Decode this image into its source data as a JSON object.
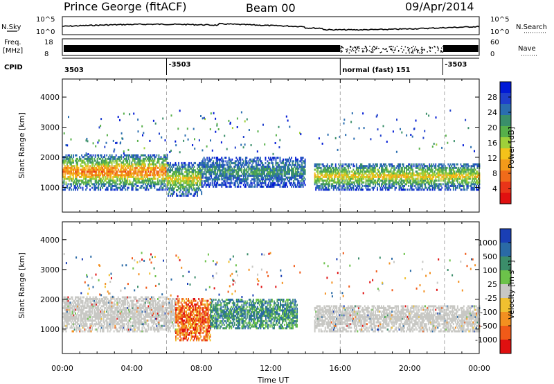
{
  "header": {
    "station": "Prince George (fitACF)",
    "beam": "Beam 00",
    "date": "09/Apr/2014"
  },
  "strips": {
    "nsky_label": "N.Sky",
    "nsearch_label": "N.Search",
    "freq_label_line1": "Freq.",
    "freq_label_line2": "[MHz]",
    "nave_label": "Nave",
    "cpid_label": "CPID",
    "noise_ticks": [
      "10^5",
      "10^0"
    ],
    "freq_ticks": [
      "18",
      "8"
    ],
    "nave_ticks": [
      "60",
      "0"
    ],
    "cpid_entries": [
      {
        "time": 0.0,
        "text": "3503"
      },
      {
        "time": 6.0,
        "text": "-3503"
      },
      {
        "time": 16.0,
        "text": "normal (fast) 151"
      },
      {
        "time": 21.9,
        "text": "-3503"
      }
    ]
  },
  "panels": {
    "power": {
      "ylabel": "Slant Range [km]",
      "colorbar_label": "Power [dB]",
      "colorbar_ticks": [
        "28",
        "24",
        "20",
        "16",
        "12",
        "8",
        "4"
      ],
      "colors": [
        "#0019d6",
        "#1f3fcc",
        "#2a6db0",
        "#3a8f6a",
        "#57b04a",
        "#9fd03a",
        "#f3c21a",
        "#f39a1a",
        "#f06b1a",
        "#e93518",
        "#e01010"
      ]
    },
    "velocity": {
      "ylabel": "Slant Range [km]",
      "colorbar_label": "Velocity [m s⁻¹]",
      "colorbar_ticks": [
        "1000",
        "500",
        "100",
        "25",
        "-25",
        "-100",
        "-500",
        "-1000"
      ],
      "colors": [
        "#1a3fb5",
        "#2a6aa6",
        "#3b8d6a",
        "#6cc24a",
        "#c8c8c4",
        "#f0c030",
        "#f39020",
        "#f05a18",
        "#e01010"
      ]
    }
  },
  "xaxis": {
    "label": "Time UT",
    "ticks": [
      "00:00",
      "04:00",
      "08:00",
      "12:00",
      "16:00",
      "20:00",
      "00:00"
    ]
  },
  "yaxis": {
    "ticks": [
      "1000",
      "2000",
      "3000",
      "4000"
    ]
  },
  "chart_data": {
    "type": "heatmap",
    "x_range_hours": [
      0,
      24
    ],
    "y_range_km": [
      180,
      4600
    ],
    "dashed_times": [
      6,
      16,
      22
    ],
    "power_echo_bands": [
      {
        "t0": 0.0,
        "t1": 6.0,
        "r_lo": 900,
        "r_hi": 2100,
        "level": "high"
      },
      {
        "t0": 6.0,
        "t1": 8.0,
        "r_lo": 700,
        "r_hi": 1800,
        "level": "mid"
      },
      {
        "t0": 8.0,
        "t1": 14.0,
        "r_lo": 1000,
        "r_hi": 2000,
        "level": "low"
      },
      {
        "t0": 14.5,
        "t1": 24.0,
        "r_lo": 900,
        "r_hi": 1800,
        "level": "mid"
      }
    ],
    "velocity_echo_bands": [
      {
        "t0": 0.0,
        "t1": 6.5,
        "r_lo": 900,
        "r_hi": 2100,
        "level": "ground"
      },
      {
        "t0": 6.5,
        "t1": 8.5,
        "r_lo": 600,
        "r_hi": 2000,
        "level": "negative"
      },
      {
        "t0": 8.5,
        "t1": 13.5,
        "r_lo": 1000,
        "r_hi": 2000,
        "level": "positive"
      },
      {
        "t0": 14.5,
        "t1": 24.0,
        "r_lo": 900,
        "r_hi": 1800,
        "level": "ground"
      }
    ]
  }
}
